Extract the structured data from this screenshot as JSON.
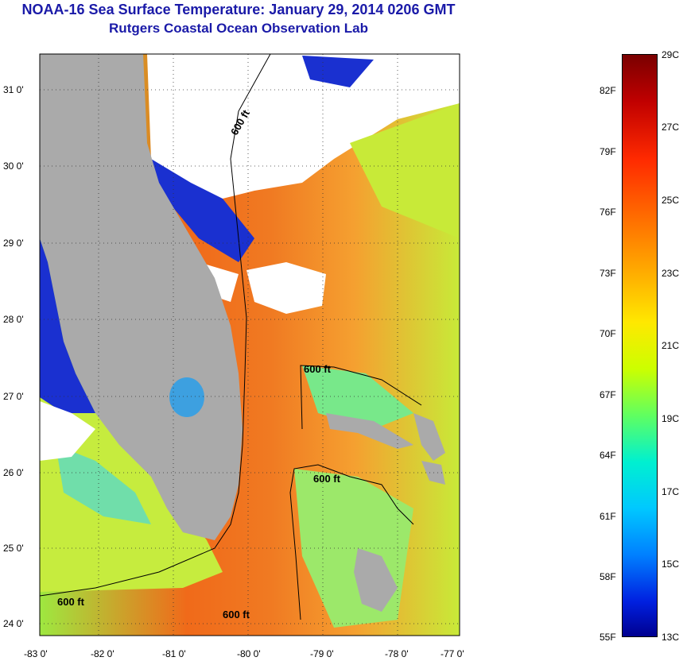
{
  "header": {
    "title": "NOAA-16 Sea Surface Temperature:  January 29, 2014 0206 GMT",
    "subtitle": "Rutgers Coastal Ocean Observation Lab"
  },
  "map": {
    "lat_labels": [
      "31 0'",
      "30 0'",
      "29 0'",
      "28 0'",
      "27 0'",
      "26 0'",
      "25 0'",
      "24 0'"
    ],
    "lon_labels": [
      "-83 0'",
      "-82 0'",
      "-81 0'",
      "-80 0'",
      "-79 0'",
      "-78 0'",
      "-77 0'"
    ],
    "contour_labels": [
      "600 ft",
      "600 ft",
      "600 ft",
      "600 ft",
      "600 ft"
    ],
    "colors": {
      "land": "#aaaaaa",
      "cloud": "#ffffff",
      "warm": "#f46a1c",
      "cool": "#c8f03c",
      "cold": "#0018c8"
    }
  },
  "colorbar": {
    "celsius": [
      "29C",
      "27C",
      "25C",
      "23C",
      "21C",
      "19C",
      "17C",
      "15C",
      "13C"
    ],
    "fahrenheit": [
      "82F",
      "79F",
      "76F",
      "73F",
      "70F",
      "67F",
      "64F",
      "61F",
      "58F",
      "55F"
    ]
  }
}
